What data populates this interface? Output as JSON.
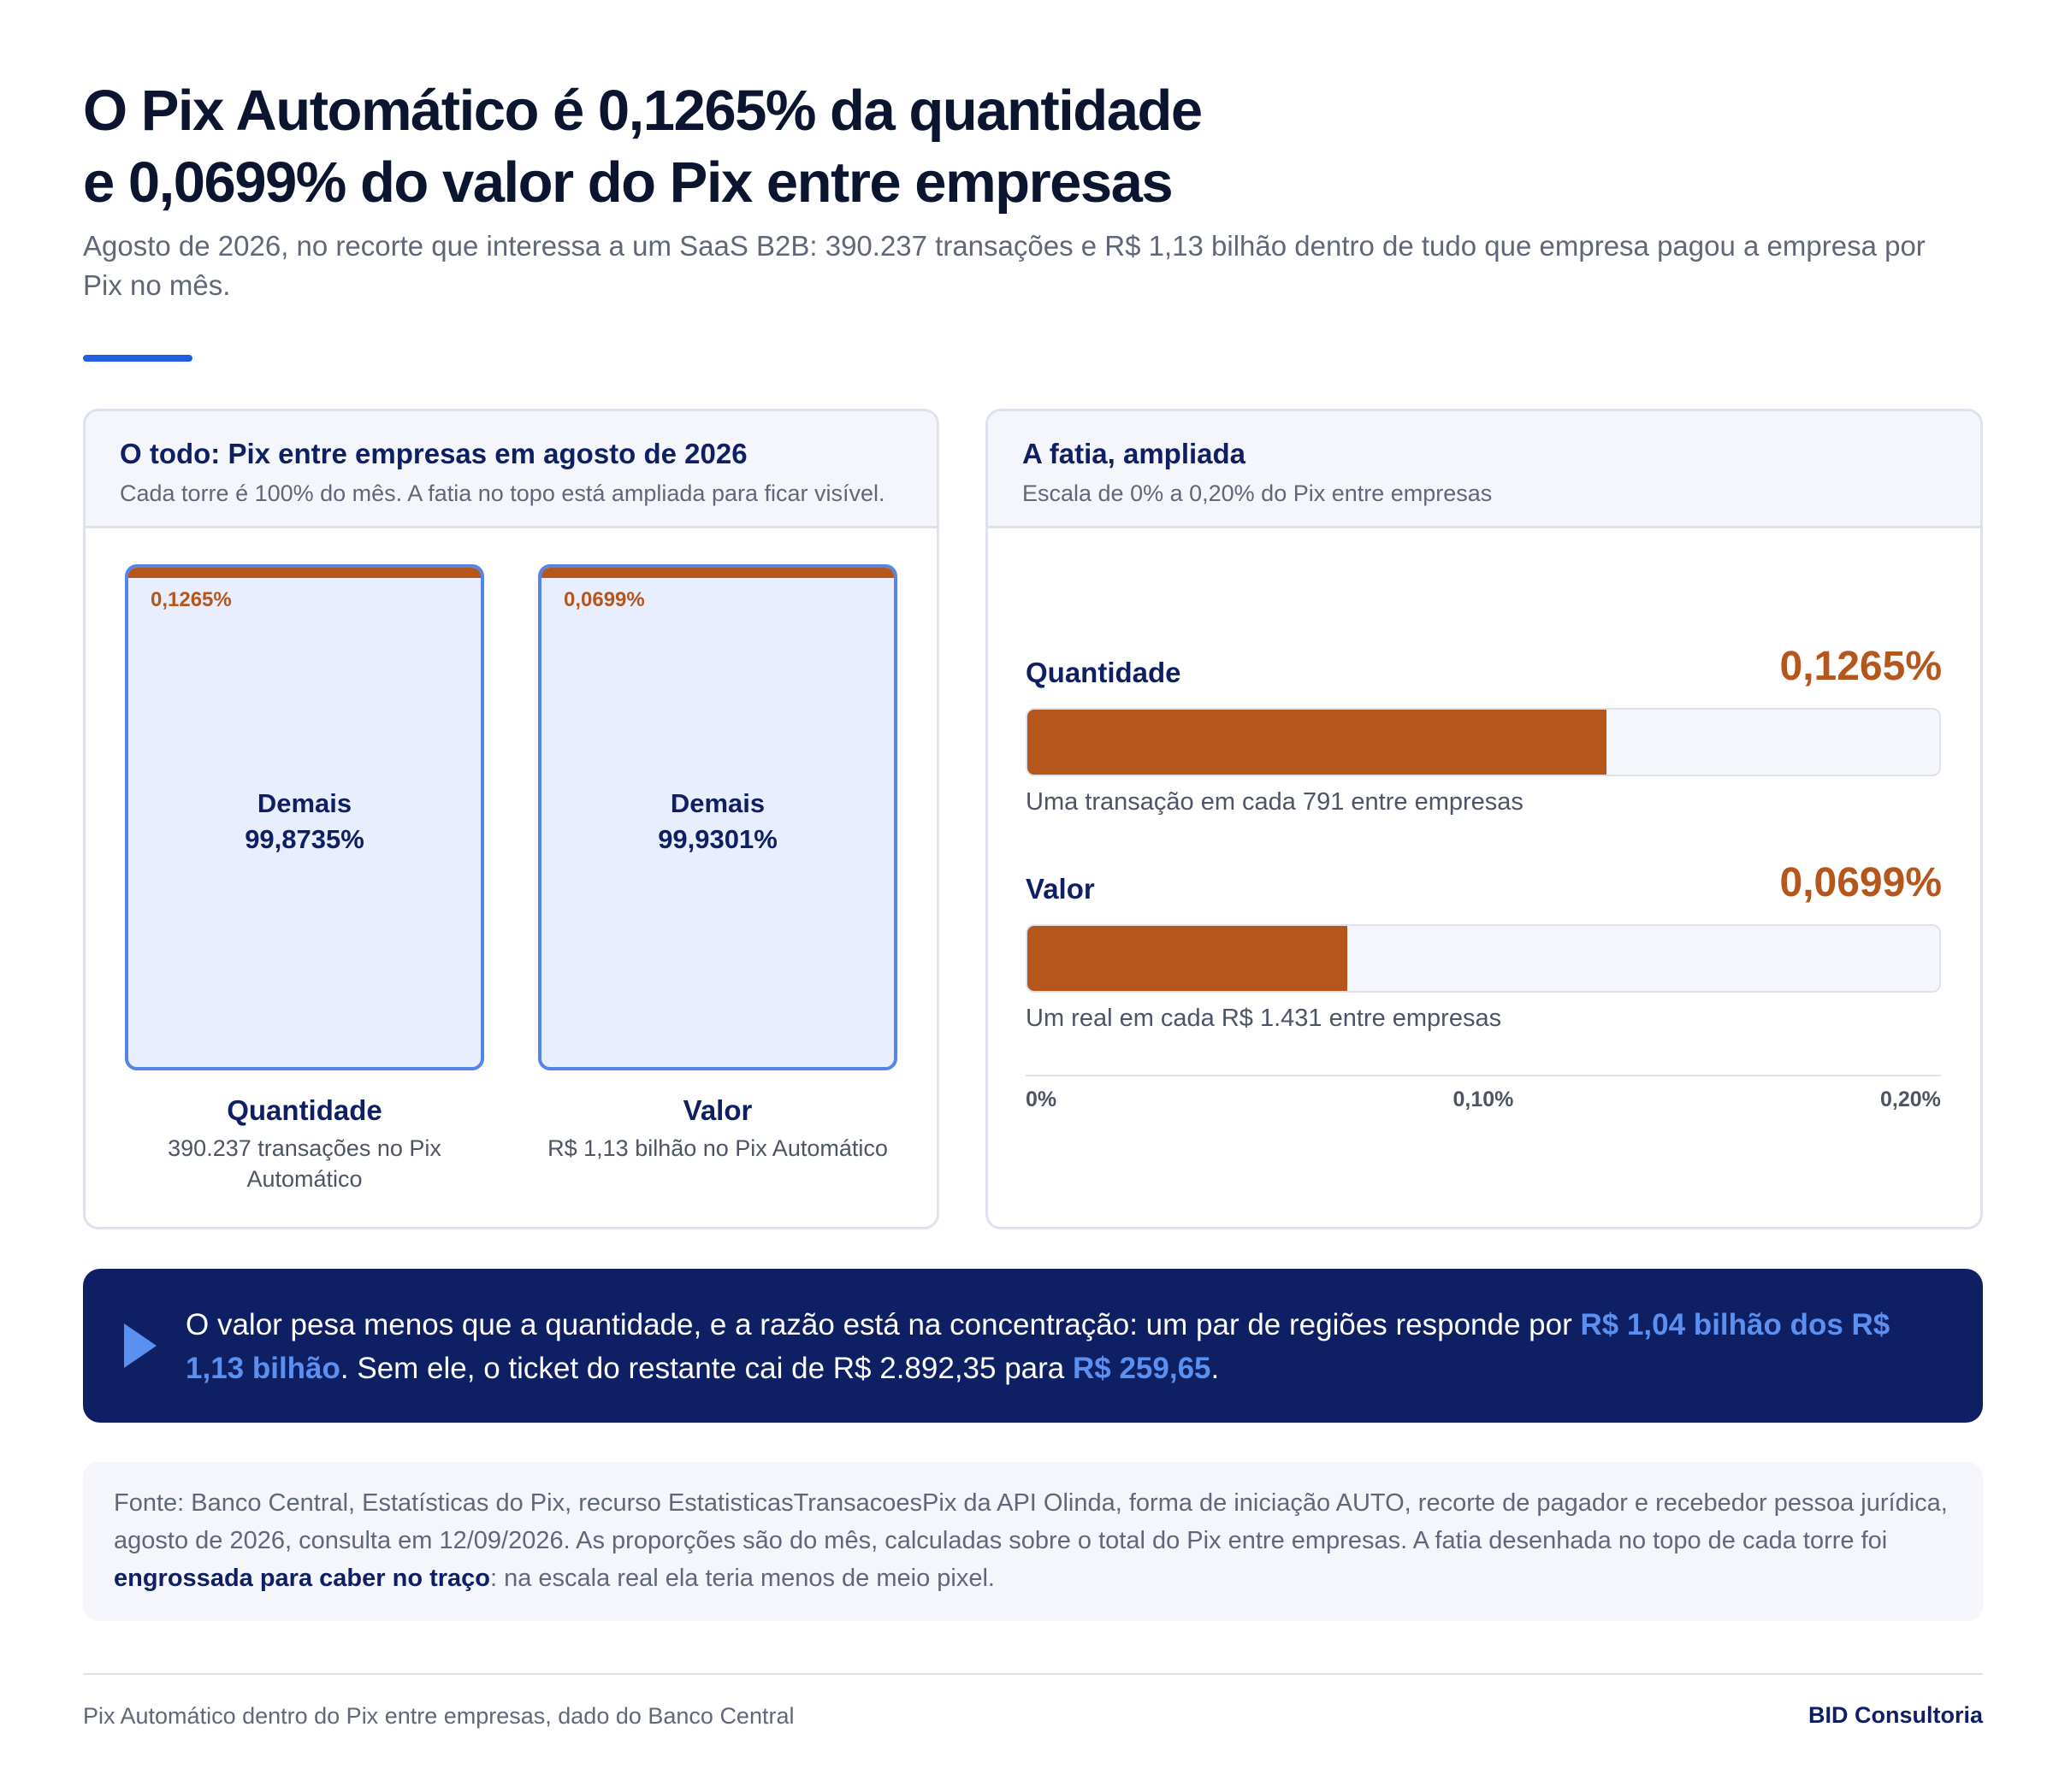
{
  "header": {
    "title_line1": "O Pix Automático é 0,1265% da quantidade",
    "title_line2": "e 0,0699% do valor do Pix entre empresas",
    "subtitle": "Agosto de 2026, no recorte que interessa a um SaaS B2B: 390.237 transações e R$ 1,13 bilhão dentro de tudo que empresa pagou a empresa por Pix no mês."
  },
  "left_panel": {
    "title": "O todo: Pix entre empresas em agosto de 2026",
    "subtitle": "Cada torre é 100% do mês. A fatia no topo está ampliada para ficar visível."
  },
  "right_panel": {
    "title": "A fatia, ampliada",
    "subtitle": "Escala de 0% a 0,20% do Pix entre empresas"
  },
  "chart_data": [
    {
      "type": "bar",
      "categories": [
        "Quantidade",
        "Valor"
      ],
      "series": [
        {
          "name": "Pix Automático",
          "values": [
            0.1265,
            0.0699
          ]
        },
        {
          "name": "Demais",
          "values": [
            99.8735,
            99.9301
          ]
        }
      ],
      "towers": [
        {
          "label": "Quantidade",
          "slice_text": "0,1265%",
          "rest_name": "Demais",
          "rest_text": "99,8735%",
          "note": "390.237 transações no Pix Automático"
        },
        {
          "label": "Valor",
          "slice_text": "0,0699%",
          "rest_name": "Demais",
          "rest_text": "99,9301%",
          "note": "R$ 1,13 bilhão no Pix Automático"
        }
      ]
    },
    {
      "type": "bar",
      "orientation": "horizontal",
      "categories": [
        "Quantidade",
        "Valor"
      ],
      "values": [
        0.1265,
        0.0699
      ],
      "xlim": [
        0,
        0.2
      ],
      "value_texts": [
        "0,1265%",
        "0,0699%"
      ],
      "notes": [
        "Uma transação em cada 791 entre empresas",
        "Um real em cada R$ 1.431 entre empresas"
      ],
      "xticks": [
        0,
        0.1,
        0.2
      ],
      "xtick_labels": [
        "0%",
        "0,10%",
        "0,20%"
      ]
    }
  ],
  "insight": {
    "text_1": "O valor pesa menos que a quantidade, e a razão está na concentração: um par de regiões responde por ",
    "highlight_1": "R$ 1,04 bilhão dos R$ 1,13 bilhão",
    "text_2": ". Sem ele, o ticket do restante cai de R$ 2.892,35 para ",
    "highlight_2": "R$ 259,65",
    "text_3": "."
  },
  "source": {
    "text_1": "Fonte: Banco Central, Estatísticas do Pix, recurso EstatisticasTransacoesPix da API Olinda, forma de iniciação AUTO, recorte de pagador e recebedor pessoa jurídica, agosto de 2026, consulta em 12/09/2026. As proporções são do mês, calculadas sobre o total do Pix entre empresas. A fatia desenhada no topo de cada torre foi ",
    "bold": "engrossada para caber no traço",
    "text_2": ": na escala real ela teria menos de meio pixel."
  },
  "footer": {
    "left": "Pix Automático dentro do Pix entre empresas, dado do Banco Central",
    "right": "BID Consultoria"
  },
  "colors": {
    "accent": "#1f5fe0",
    "slice": "#b5561d",
    "navy": "#0f1f64",
    "highlight": "#5b8ff0"
  }
}
